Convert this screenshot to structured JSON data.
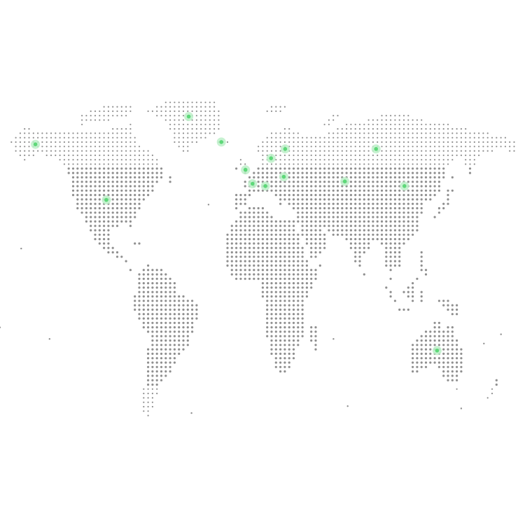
{
  "colors": {
    "background": "#ffffff",
    "land_dot": "#8f8f8f",
    "marker_halo": "#bdf0c9",
    "marker_core": "#5ed879"
  },
  "map": {
    "style": "dotted-world-map",
    "projection": "equirectangular-crop",
    "longitude_range": [
      -170,
      190
    ],
    "latitude_range": [
      -58,
      84
    ]
  },
  "markers": [
    {
      "name": "alaska-marker",
      "lon": -150,
      "lat": 64
    },
    {
      "name": "usa-marker",
      "lon": -100,
      "lat": 40
    },
    {
      "name": "greenland-marker",
      "lon": -42,
      "lat": 76
    },
    {
      "name": "iceland-marker",
      "lon": -19,
      "lat": 65
    },
    {
      "name": "finland-marker",
      "lon": 26,
      "lat": 62
    },
    {
      "name": "sweden-marker",
      "lon": 16,
      "lat": 58
    },
    {
      "name": "uk-marker",
      "lon": -2,
      "lat": 53
    },
    {
      "name": "france-marker",
      "lon": 3,
      "lat": 47
    },
    {
      "name": "italy-marker",
      "lon": 12,
      "lat": 46
    },
    {
      "name": "romania-marker",
      "lon": 25,
      "lat": 50
    },
    {
      "name": "kazakhstan-marker",
      "lon": 68,
      "lat": 48
    },
    {
      "name": "russia-marker",
      "lon": 90,
      "lat": 62
    },
    {
      "name": "china-marker",
      "lon": 110,
      "lat": 46
    },
    {
      "name": "australia-marker",
      "lon": 133,
      "lat": -25
    }
  ]
}
